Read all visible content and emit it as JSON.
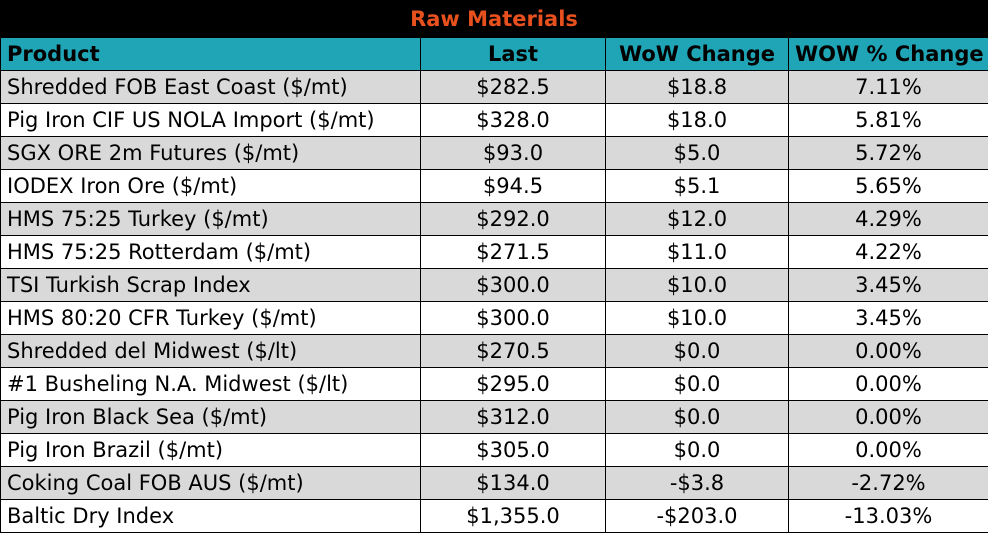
{
  "title": "Raw Materials",
  "headers": [
    "Product",
    "Last",
    "WoW Change",
    "WOW % Change"
  ],
  "rows": [
    {
      "product": "Shredded FOB East Coast ($/mt)",
      "last": "$282.5",
      "wow_change": "$18.8",
      "wow_pct": "7.11%"
    },
    {
      "product": "Pig Iron CIF US NOLA Import ($/mt)",
      "last": "$328.0",
      "wow_change": "$18.0",
      "wow_pct": "5.81%"
    },
    {
      "product": "SGX ORE 2m Futures ($/mt)",
      "last": "$93.0",
      "wow_change": "$5.0",
      "wow_pct": "5.72%"
    },
    {
      "product": "IODEX  Iron Ore ($/mt)",
      "last": "$94.5",
      "wow_change": "$5.1",
      "wow_pct": "5.65%"
    },
    {
      "product": "HMS 75:25 Turkey ($/mt)",
      "last": "$292.0",
      "wow_change": "$12.0",
      "wow_pct": "4.29%"
    },
    {
      "product": "HMS 75:25 Rotterdam ($/mt)",
      "last": "$271.5",
      "wow_change": "$11.0",
      "wow_pct": "4.22%"
    },
    {
      "product": "TSI Turkish Scrap Index",
      "last": "$300.0",
      "wow_change": "$10.0",
      "wow_pct": "3.45%"
    },
    {
      "product": "HMS 80:20 CFR Turkey ($/mt)",
      "last": "$300.0",
      "wow_change": "$10.0",
      "wow_pct": "3.45%"
    },
    {
      "product": "Shredded del  Midwest ($/lt)",
      "last": "$270.5",
      "wow_change": "$0.0",
      "wow_pct": "0.00%"
    },
    {
      "product": "#1 Busheling N.A. Midwest ($/lt)",
      "last": "$295.0",
      "wow_change": "$0.0",
      "wow_pct": "0.00%"
    },
    {
      "product": "Pig Iron Black Sea ($/mt)",
      "last": "$312.0",
      "wow_change": "$0.0",
      "wow_pct": "0.00%"
    },
    {
      "product": "Pig Iron Brazil ($/mt)",
      "last": "$305.0",
      "wow_change": "$0.0",
      "wow_pct": "0.00%"
    },
    {
      "product": "Coking Coal FOB AUS ($/mt)",
      "last": "$134.0",
      "wow_change": "-$3.8",
      "wow_pct": "-2.72%"
    },
    {
      "product": "Baltic Dry Index",
      "last": "$1,355.0",
      "wow_change": "-$203.0",
      "wow_pct": "-13.03%"
    }
  ],
  "colors": {
    "title_background": "#000000",
    "title_text": "#e8501e",
    "header_background": "#1fa5b5",
    "shaded_row": "#d9d9d9",
    "plain_row": "#ffffff"
  }
}
